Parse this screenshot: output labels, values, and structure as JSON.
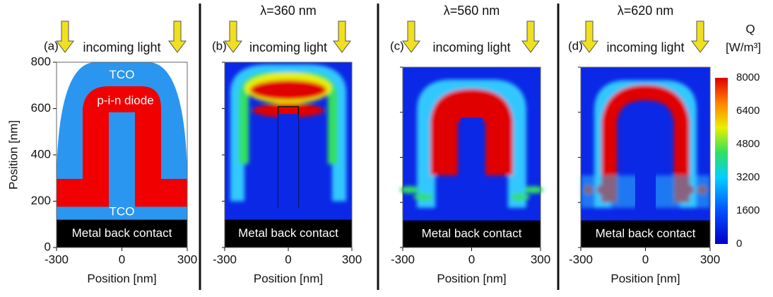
{
  "panels": [
    {
      "label": "(a)",
      "light": "incoming light",
      "tco_top": "TCO",
      "diode": "p-i-n diode",
      "tco_bottom": "TCO",
      "contact": "Metal back contact",
      "ylabel": "Position [nm]",
      "yticks": [
        800,
        600,
        400,
        200,
        0
      ],
      "xticks": [
        -300,
        0,
        300
      ],
      "xlabel": "Position [nm]"
    },
    {
      "label": "(b)",
      "title": "λ=360 nm",
      "light": "incoming light",
      "contact": "Metal back contact",
      "xticks": [
        -300,
        0,
        300
      ],
      "xlabel": "Position [nm]"
    },
    {
      "label": "(c)",
      "title": "λ=560 nm",
      "light": "incoming light",
      "contact": "Metal back contact",
      "xticks": [
        -300,
        0,
        300
      ],
      "xlabel": "Position [nm]"
    },
    {
      "label": "(d)",
      "title": "λ=620 nm",
      "light": "incoming light",
      "contact": "Metal back contact",
      "xticks": [
        -300,
        0,
        300
      ],
      "xlabel": "Position [nm]"
    }
  ],
  "colorbar": {
    "title": "Q",
    "unit": "[W/m³]",
    "ticks": [
      8000,
      6400,
      4800,
      3200,
      1600,
      0
    ]
  }
}
